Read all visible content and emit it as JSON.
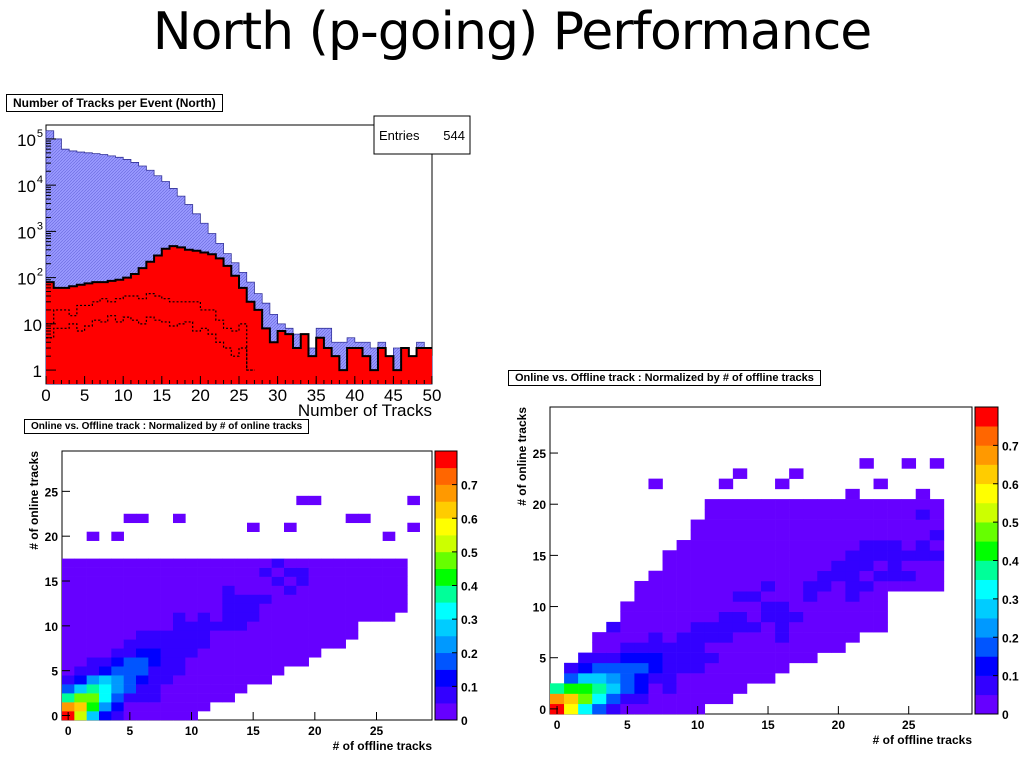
{
  "slide": {
    "title": "North (p-going) Performance"
  },
  "colors": {
    "hist_total": "#9999ff",
    "hist_selected": "#ff0000",
    "palette": [
      "#6600ff",
      "#3300ff",
      "#0000ff",
      "#0055ff",
      "#0099ff",
      "#00ccff",
      "#00ffff",
      "#00ff99",
      "#00ff00",
      "#66ff00",
      "#ccff00",
      "#ffff00",
      "#ffcc00",
      "#ff9900",
      "#ff6600",
      "#ff0000"
    ]
  },
  "chart_data": [
    {
      "type": "histogram",
      "title": "Number of Tracks per Event (North)",
      "xlabel": "Number of Tracks",
      "ylabel": "",
      "xlim": [
        0,
        50
      ],
      "ylim": [
        0.5,
        200000
      ],
      "log_y": true,
      "x_ticks": [
        0,
        5,
        10,
        15,
        20,
        25,
        30,
        35,
        40,
        45,
        50
      ],
      "y_ticks": [
        {
          "value": 1,
          "label": "1"
        },
        {
          "value": 10,
          "label": "10"
        },
        {
          "value": 100,
          "label": "10",
          "sup": "2"
        },
        {
          "value": 1000,
          "label": "10",
          "sup": "3"
        },
        {
          "value": 10000,
          "label": "10",
          "sup": "4"
        },
        {
          "value": 100000,
          "label": "10",
          "sup": "5"
        }
      ],
      "stats": {
        "label": "Entries",
        "value": "544"
      },
      "series": [
        {
          "style": "fill-blue",
          "values": [
            150000,
            100000,
            60000,
            55000,
            52000,
            50000,
            48000,
            46000,
            43000,
            40000,
            36000,
            31000,
            26000,
            21000,
            16000,
            12000,
            8500,
            5800,
            3800,
            2400,
            1500,
            900,
            550,
            330,
            210,
            130,
            80,
            45,
            28,
            16,
            10,
            8,
            6,
            5,
            3,
            8,
            8,
            4,
            4,
            5,
            4,
            4,
            3,
            4,
            2,
            3,
            3,
            2,
            4,
            2
          ]
        },
        {
          "style": "fill-red",
          "values": [
            80,
            60,
            60,
            65,
            70,
            75,
            80,
            80,
            85,
            90,
            100,
            120,
            160,
            220,
            300,
            420,
            480,
            450,
            400,
            380,
            350,
            320,
            260,
            180,
            110,
            60,
            30,
            20,
            8,
            4,
            7,
            6,
            3,
            6,
            2,
            5,
            3,
            2,
            1,
            3,
            3,
            2,
            1,
            3,
            2,
            1,
            3,
            2,
            3,
            3
          ]
        },
        {
          "style": "dotted-black",
          "values": [
            10,
            20,
            20,
            15,
            25,
            25,
            30,
            35,
            30,
            35,
            40,
            40,
            35,
            45,
            40,
            35,
            30,
            30,
            30,
            30,
            20,
            20,
            12,
            8,
            7,
            10,
            1
          ]
        },
        {
          "style": "dotted-black",
          "values": [
            5,
            8,
            8,
            10,
            7,
            9,
            12,
            11,
            15,
            11,
            14,
            12,
            10,
            14,
            12,
            11,
            9,
            10,
            11,
            7,
            8,
            6,
            4,
            3,
            2,
            3,
            1
          ]
        }
      ]
    },
    {
      "type": "heatmap",
      "title": "Online vs. Offline track : Normalized by # of online tracks",
      "xlabel": "# of offline tracks",
      "ylabel": "# of online tracks",
      "xlim": [
        -0.5,
        29.5
      ],
      "ylim": [
        -0.5,
        29.5
      ],
      "x_ticks": [
        0,
        5,
        10,
        15,
        20,
        25
      ],
      "y_ticks": [
        0,
        5,
        10,
        15,
        20,
        25
      ],
      "z_max": 0.8,
      "z_ticks": [
        0,
        0.1,
        0.2,
        0.3,
        0.4,
        0.5,
        0.6,
        0.7
      ],
      "z_tick_labels": [
        "0",
        "0.1",
        "0.2",
        "0.3",
        "0.4",
        "0.5",
        "0.6",
        "0.7"
      ],
      "model": {
        "band_slope": 0.9,
        "band_width": 1.6,
        "peak": 0.8,
        "background": 0.02,
        "max_online": 17,
        "top_cells": [
          [
            19,
            24
          ],
          [
            20,
            24
          ],
          [
            28,
            24
          ],
          [
            5,
            22
          ],
          [
            6,
            22
          ],
          [
            9,
            22
          ],
          [
            15,
            21
          ],
          [
            18,
            21
          ],
          [
            23,
            22
          ],
          [
            24,
            22
          ],
          [
            28,
            21
          ],
          [
            2,
            20
          ],
          [
            4,
            20
          ],
          [
            26,
            20
          ]
        ]
      }
    },
    {
      "type": "heatmap",
      "title": "Online vs. Offline track : Normalized by # of offline tracks",
      "xlabel": "# of offline tracks",
      "ylabel": "# of online tracks",
      "xlim": [
        -0.5,
        29.5
      ],
      "ylim": [
        -0.5,
        29.5
      ],
      "x_ticks": [
        0,
        5,
        10,
        15,
        20,
        25
      ],
      "y_ticks": [
        0,
        5,
        10,
        15,
        20,
        25
      ],
      "z_max": 0.8,
      "z_ticks": [
        0,
        0.1,
        0.2,
        0.3,
        0.4,
        0.5,
        0.6,
        0.7
      ],
      "z_tick_labels": [
        "0",
        "0.1",
        "0.2",
        "0.3",
        "0.4",
        "0.5",
        "0.6",
        "0.7"
      ],
      "model": {
        "band_slope": 0.62,
        "band_width": 1.5,
        "peak": 0.8,
        "background": 0.02,
        "max_online": 20,
        "top_cells": [
          [
            22,
            24
          ],
          [
            25,
            24
          ],
          [
            27,
            24
          ],
          [
            13,
            23
          ],
          [
            17,
            23
          ],
          [
            7,
            22
          ],
          [
            12,
            22
          ],
          [
            16,
            22
          ],
          [
            21,
            21
          ],
          [
            23,
            22
          ],
          [
            26,
            21
          ]
        ]
      }
    }
  ]
}
